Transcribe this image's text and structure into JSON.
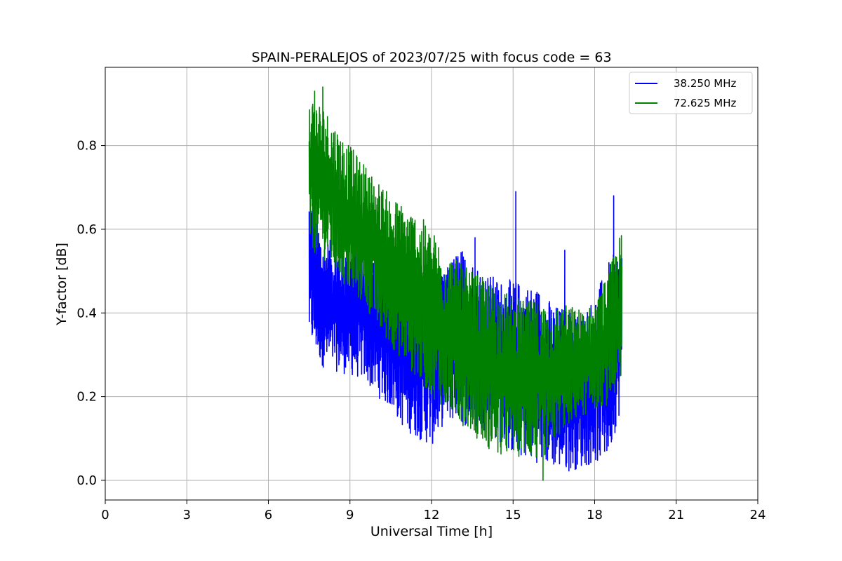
{
  "chart_data": {
    "type": "line",
    "title": "SPAIN-PERALEJOS of 2023/07/25 with focus code = 63",
    "xlabel": "Universal Time [h]",
    "ylabel": "Y-factor [dB]",
    "xlim": [
      0,
      24
    ],
    "ylim": [
      -0.047,
      0.987
    ],
    "xticks": [
      0,
      3,
      6,
      9,
      12,
      15,
      18,
      21,
      24
    ],
    "yticks": [
      0.0,
      0.2,
      0.4,
      0.6,
      0.8
    ],
    "xtick_labels": [
      "0",
      "3",
      "6",
      "9",
      "12",
      "15",
      "18",
      "21",
      "24"
    ],
    "ytick_labels": [
      "0.0",
      "0.2",
      "0.4",
      "0.6",
      "0.8"
    ],
    "grid": true,
    "legend_position": "top-right",
    "series": [
      {
        "name": "38.250 MHz",
        "color": "#0000ff",
        "envelope": {
          "x": [
            7.5,
            8.0,
            8.5,
            9.0,
            9.5,
            10.0,
            10.5,
            11.0,
            11.5,
            12.0,
            12.5,
            13.0,
            13.5,
            14.0,
            14.5,
            15.0,
            15.5,
            16.0,
            16.5,
            17.0,
            17.5,
            18.0,
            18.5,
            19.0
          ],
          "low": [
            0.33,
            0.27,
            0.26,
            0.25,
            0.24,
            0.2,
            0.17,
            0.12,
            0.1,
            0.08,
            0.14,
            0.14,
            0.12,
            0.12,
            0.09,
            0.06,
            0.05,
            0.04,
            0.03,
            0.02,
            0.03,
            0.04,
            0.05,
            0.18
          ],
          "high": [
            0.7,
            0.58,
            0.57,
            0.56,
            0.56,
            0.55,
            0.54,
            0.52,
            0.48,
            0.46,
            0.5,
            0.56,
            0.53,
            0.5,
            0.48,
            0.48,
            0.47,
            0.46,
            0.42,
            0.41,
            0.4,
            0.44,
            0.52,
            0.57
          ]
        },
        "spikes": [
          {
            "x": 15.1,
            "y": 0.69
          },
          {
            "x": 18.7,
            "y": 0.68
          },
          {
            "x": 16.9,
            "y": 0.55
          },
          {
            "x": 13.6,
            "y": 0.58
          }
        ]
      },
      {
        "name": "72.625 MHz",
        "color": "#008000",
        "envelope": {
          "x": [
            7.5,
            8.0,
            8.5,
            9.0,
            9.5,
            10.0,
            10.5,
            11.0,
            11.5,
            12.0,
            12.5,
            13.0,
            13.5,
            14.0,
            14.5,
            15.0,
            15.5,
            16.0,
            16.5,
            17.0,
            17.5,
            18.0,
            18.5,
            19.0
          ],
          "low": [
            0.55,
            0.53,
            0.49,
            0.44,
            0.42,
            0.36,
            0.32,
            0.28,
            0.24,
            0.2,
            0.17,
            0.14,
            0.11,
            0.08,
            0.05,
            0.06,
            0.05,
            0.04,
            0.09,
            0.13,
            0.15,
            0.17,
            0.18,
            0.22
          ],
          "high": [
            0.93,
            0.9,
            0.85,
            0.8,
            0.76,
            0.72,
            0.68,
            0.66,
            0.64,
            0.6,
            0.56,
            0.52,
            0.5,
            0.48,
            0.46,
            0.44,
            0.43,
            0.43,
            0.42,
            0.42,
            0.41,
            0.42,
            0.5,
            0.6
          ]
        },
        "spikes": [
          {
            "x": 8.0,
            "y": 0.94
          },
          {
            "x": 16.1,
            "y": 0.0
          },
          {
            "x": 7.7,
            "y": 0.93
          }
        ]
      }
    ]
  }
}
